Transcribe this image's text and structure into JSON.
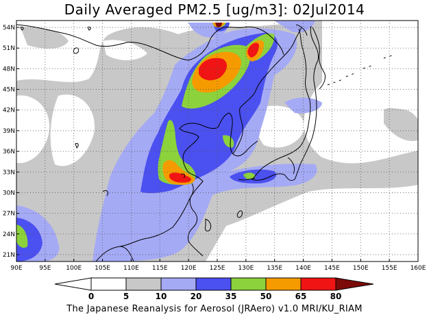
{
  "title": "Daily Averaged PM2.5 [ug/m3]: 02Jul2014",
  "credit": "The Japanese Reanalysis for Aerosol (JRAero) v1.0 MRI/KU_RIAM",
  "map": {
    "lon_range": [
      90,
      160
    ],
    "lat_range": [
      20,
      55
    ],
    "lon_ticks": [
      "90E",
      "95E",
      "100E",
      "105E",
      "110E",
      "115E",
      "120E",
      "125E",
      "130E",
      "135E",
      "140E",
      "145E",
      "150E",
      "155E",
      "160E"
    ],
    "lat_ticks": [
      "21N",
      "24N",
      "27N",
      "30N",
      "33N",
      "36N",
      "39N",
      "42N",
      "45N",
      "48N",
      "51N",
      "54N"
    ],
    "lat_tick_values": [
      21,
      24,
      27,
      30,
      33,
      36,
      39,
      42,
      45,
      48,
      51,
      54
    ],
    "grid": "dotted"
  },
  "colorbar": {
    "levels": [
      "0",
      "5",
      "10",
      "20",
      "35",
      "50",
      "65",
      "80"
    ],
    "colors": [
      "#ffffff",
      "#ffffff",
      "#c8c8c8",
      "#a5aaf5",
      "#4b50f0",
      "#8cd23c",
      "#f59b00",
      "#f01414",
      "#7d0a0a"
    ],
    "min_arrow_color": "#ffffff",
    "max_arrow_color": "#7d0a0a"
  }
}
